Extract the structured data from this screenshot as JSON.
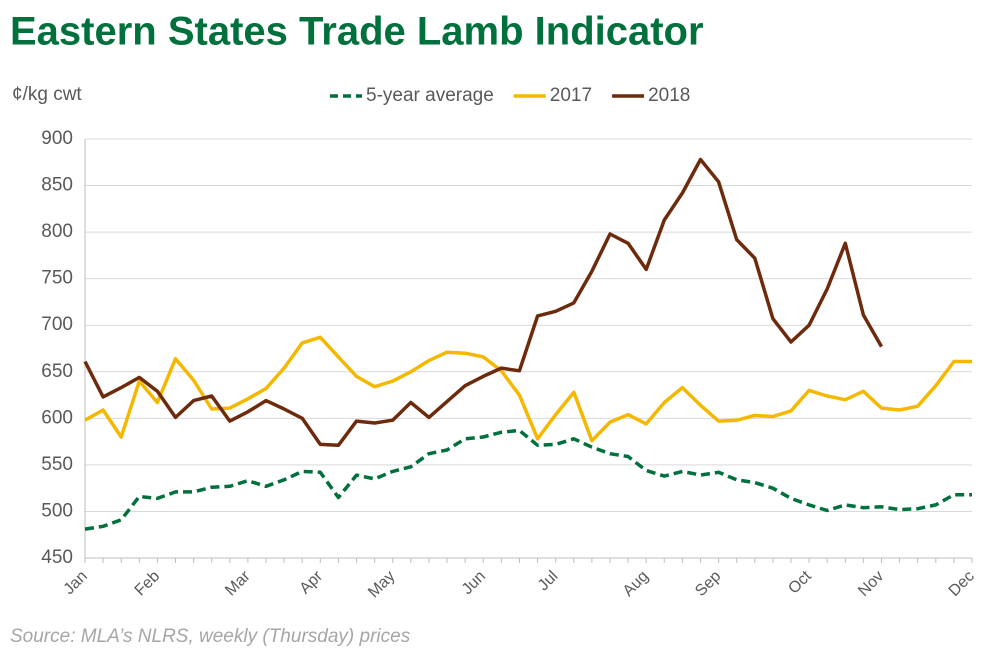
{
  "chart_data": {
    "type": "line",
    "title": "Eastern States Trade Lamb Indicator",
    "y_label": "¢/kg cwt",
    "source": "Source: MLA’s NLRS, weekly (Thursday) prices",
    "categories": [
      "Jan",
      null,
      null,
      null,
      "Feb",
      null,
      null,
      null,
      null,
      "Mar",
      null,
      null,
      null,
      "Apr",
      null,
      null,
      null,
      "May",
      null,
      null,
      null,
      null,
      "Jun",
      null,
      null,
      null,
      "Jul",
      null,
      null,
      null,
      null,
      "Aug",
      null,
      null,
      null,
      "Sep",
      null,
      null,
      null,
      null,
      "Oct",
      null,
      null,
      null,
      "Nov",
      null,
      null,
      null,
      null,
      "Dec"
    ],
    "series": [
      {
        "name": "5-year average",
        "color": "#00703c",
        "style": "dashed",
        "values": [
          481,
          484,
          491,
          516,
          514,
          521,
          521,
          526,
          527,
          533,
          527,
          534,
          543,
          542,
          515,
          539,
          535,
          543,
          548,
          562,
          566,
          578,
          580,
          585,
          587,
          571,
          572,
          578,
          569,
          562,
          559,
          544,
          538,
          543,
          539,
          542,
          534,
          531,
          525,
          514,
          507,
          501,
          507,
          504,
          505,
          502,
          503,
          507,
          518,
          518
        ]
      },
      {
        "name": "2017",
        "color": "#f5b800",
        "style": "solid",
        "values": [
          598,
          609,
          580,
          640,
          617,
          664,
          641,
          610,
          611,
          621,
          632,
          654,
          681,
          687,
          666,
          645,
          634,
          640,
          650,
          662,
          671,
          670,
          666,
          651,
          625,
          578,
          604,
          628,
          576,
          596,
          604,
          594,
          617,
          633,
          614,
          597,
          598,
          603,
          602,
          608,
          630,
          624,
          620,
          629,
          611,
          609,
          613,
          635,
          661,
          661
        ]
      },
      {
        "name": "2018",
        "color": "#6e2a0c",
        "style": "solid",
        "values": [
          661,
          623,
          633,
          644,
          629,
          601,
          619,
          624,
          597,
          607,
          619,
          610,
          600,
          572,
          571,
          597,
          595,
          598,
          617,
          601,
          618,
          635,
          645,
          654,
          651,
          710,
          715,
          724,
          758,
          798,
          788,
          760,
          813,
          842,
          878,
          854,
          792,
          772,
          707,
          682,
          700,
          739,
          788,
          711,
          677,
          null,
          null,
          null,
          null,
          null
        ]
      }
    ],
    "ylim": [
      450,
      900
    ],
    "yticks": [
      450,
      500,
      550,
      600,
      650,
      700,
      750,
      800,
      850,
      900
    ],
    "grid": true,
    "legend": "top"
  }
}
